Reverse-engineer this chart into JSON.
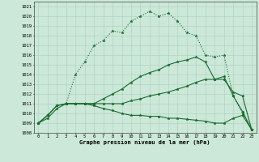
{
  "title": "Graphe pression niveau de la mer (hPa)",
  "xlim": [
    -0.5,
    23.5
  ],
  "ylim": [
    1008,
    1021.5
  ],
  "xticks": [
    0,
    1,
    2,
    3,
    4,
    5,
    6,
    7,
    8,
    9,
    10,
    11,
    12,
    13,
    14,
    15,
    16,
    17,
    18,
    19,
    20,
    21,
    22,
    23
  ],
  "yticks": [
    1008,
    1009,
    1010,
    1011,
    1012,
    1013,
    1014,
    1015,
    1016,
    1017,
    1018,
    1019,
    1020,
    1021
  ],
  "background_color": "#cce8d8",
  "grid_color": "#aacfbe",
  "line_color_main": "#1a6b30",
  "curves": [
    {
      "x": [
        0,
        1,
        2,
        3,
        4,
        5,
        6,
        7,
        8,
        9,
        10,
        11,
        12,
        13,
        14,
        15,
        16,
        17,
        18,
        19,
        20,
        21,
        22,
        23
      ],
      "y": [
        1009.0,
        1009.8,
        1010.8,
        1011.0,
        1014.0,
        1015.3,
        1017.0,
        1017.5,
        1018.5,
        1018.3,
        1019.5,
        1020.0,
        1020.5,
        1020.0,
        1020.3,
        1019.5,
        1018.3,
        1018.0,
        1016.0,
        1015.8,
        1016.0,
        1011.8,
        1010.0,
        1008.3
      ],
      "linestyle": "dotted",
      "linewidth": 0.8
    },
    {
      "x": [
        0,
        1,
        2,
        3,
        4,
        5,
        6,
        7,
        8,
        9,
        10,
        11,
        12,
        13,
        14,
        15,
        16,
        17,
        18,
        19,
        20,
        21,
        22,
        23
      ],
      "y": [
        1009.0,
        1009.8,
        1010.8,
        1011.0,
        1011.0,
        1011.0,
        1011.0,
        1011.5,
        1012.0,
        1012.5,
        1013.2,
        1013.8,
        1014.2,
        1014.5,
        1015.0,
        1015.3,
        1015.5,
        1015.8,
        1015.3,
        1013.5,
        1013.5,
        1012.2,
        1011.8,
        1008.3
      ],
      "linestyle": "solid",
      "linewidth": 0.8
    },
    {
      "x": [
        0,
        1,
        2,
        3,
        4,
        5,
        6,
        7,
        8,
        9,
        10,
        11,
        12,
        13,
        14,
        15,
        16,
        17,
        18,
        19,
        20,
        21,
        22,
        23
      ],
      "y": [
        1009.0,
        1009.8,
        1010.8,
        1011.0,
        1011.0,
        1011.0,
        1011.0,
        1011.0,
        1011.0,
        1011.0,
        1011.3,
        1011.5,
        1011.8,
        1012.0,
        1012.2,
        1012.5,
        1012.8,
        1013.2,
        1013.5,
        1013.5,
        1013.8,
        1011.8,
        1010.2,
        1008.3
      ],
      "linestyle": "solid",
      "linewidth": 0.8
    },
    {
      "x": [
        0,
        1,
        2,
        3,
        4,
        5,
        6,
        7,
        8,
        9,
        10,
        11,
        12,
        13,
        14,
        15,
        16,
        17,
        18,
        19,
        20,
        21,
        22,
        23
      ],
      "y": [
        1009.0,
        1009.5,
        1010.5,
        1011.0,
        1011.0,
        1011.0,
        1010.8,
        1010.5,
        1010.3,
        1010.0,
        1009.8,
        1009.8,
        1009.7,
        1009.7,
        1009.5,
        1009.5,
        1009.4,
        1009.3,
        1009.2,
        1009.0,
        1009.0,
        1009.5,
        1009.8,
        1008.3
      ],
      "linestyle": "solid",
      "linewidth": 0.8
    }
  ]
}
